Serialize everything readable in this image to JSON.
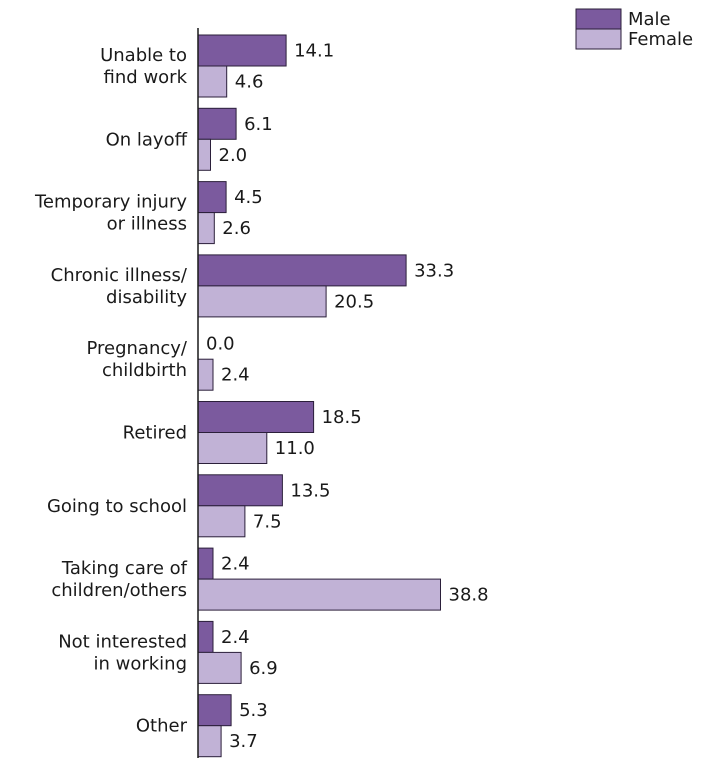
{
  "chart_data": {
    "type": "bar",
    "orientation": "horizontal",
    "categories": [
      [
        "Unable to",
        "find work"
      ],
      [
        "On layoff"
      ],
      [
        "Temporary injury",
        "or illness"
      ],
      [
        "Chronic illness/",
        "disability"
      ],
      [
        "Pregnancy/",
        "childbirth"
      ],
      [
        "Retired"
      ],
      [
        "Going to school"
      ],
      [
        "Taking care of",
        "children/others"
      ],
      [
        "Not interested",
        "in working"
      ],
      [
        "Other"
      ]
    ],
    "series": [
      {
        "name": "Male",
        "color": "#7b5a9e",
        "values": [
          14.1,
          6.1,
          4.5,
          33.3,
          0.0,
          18.5,
          13.5,
          2.4,
          2.4,
          5.3
        ],
        "labels": [
          "14.1",
          "6.1",
          "4.5",
          "33.3",
          "0.0",
          "18.5",
          "13.5",
          "2.4",
          "2.4",
          "5.3"
        ]
      },
      {
        "name": "Female",
        "color": "#c1b2d6",
        "values": [
          4.6,
          2.0,
          2.6,
          20.5,
          2.4,
          11.0,
          7.5,
          38.8,
          6.9,
          3.7
        ],
        "labels": [
          "4.6",
          "2.0",
          "2.6",
          "20.5",
          "2.4",
          "11.0",
          "7.5",
          "38.8",
          "6.9",
          "3.7"
        ]
      }
    ],
    "title": "",
    "xlabel": "",
    "ylabel": "",
    "xlim": [
      0,
      40
    ],
    "grid": false,
    "legend_position": "top-right",
    "bar_stroke_color": "#2b1f3a"
  }
}
